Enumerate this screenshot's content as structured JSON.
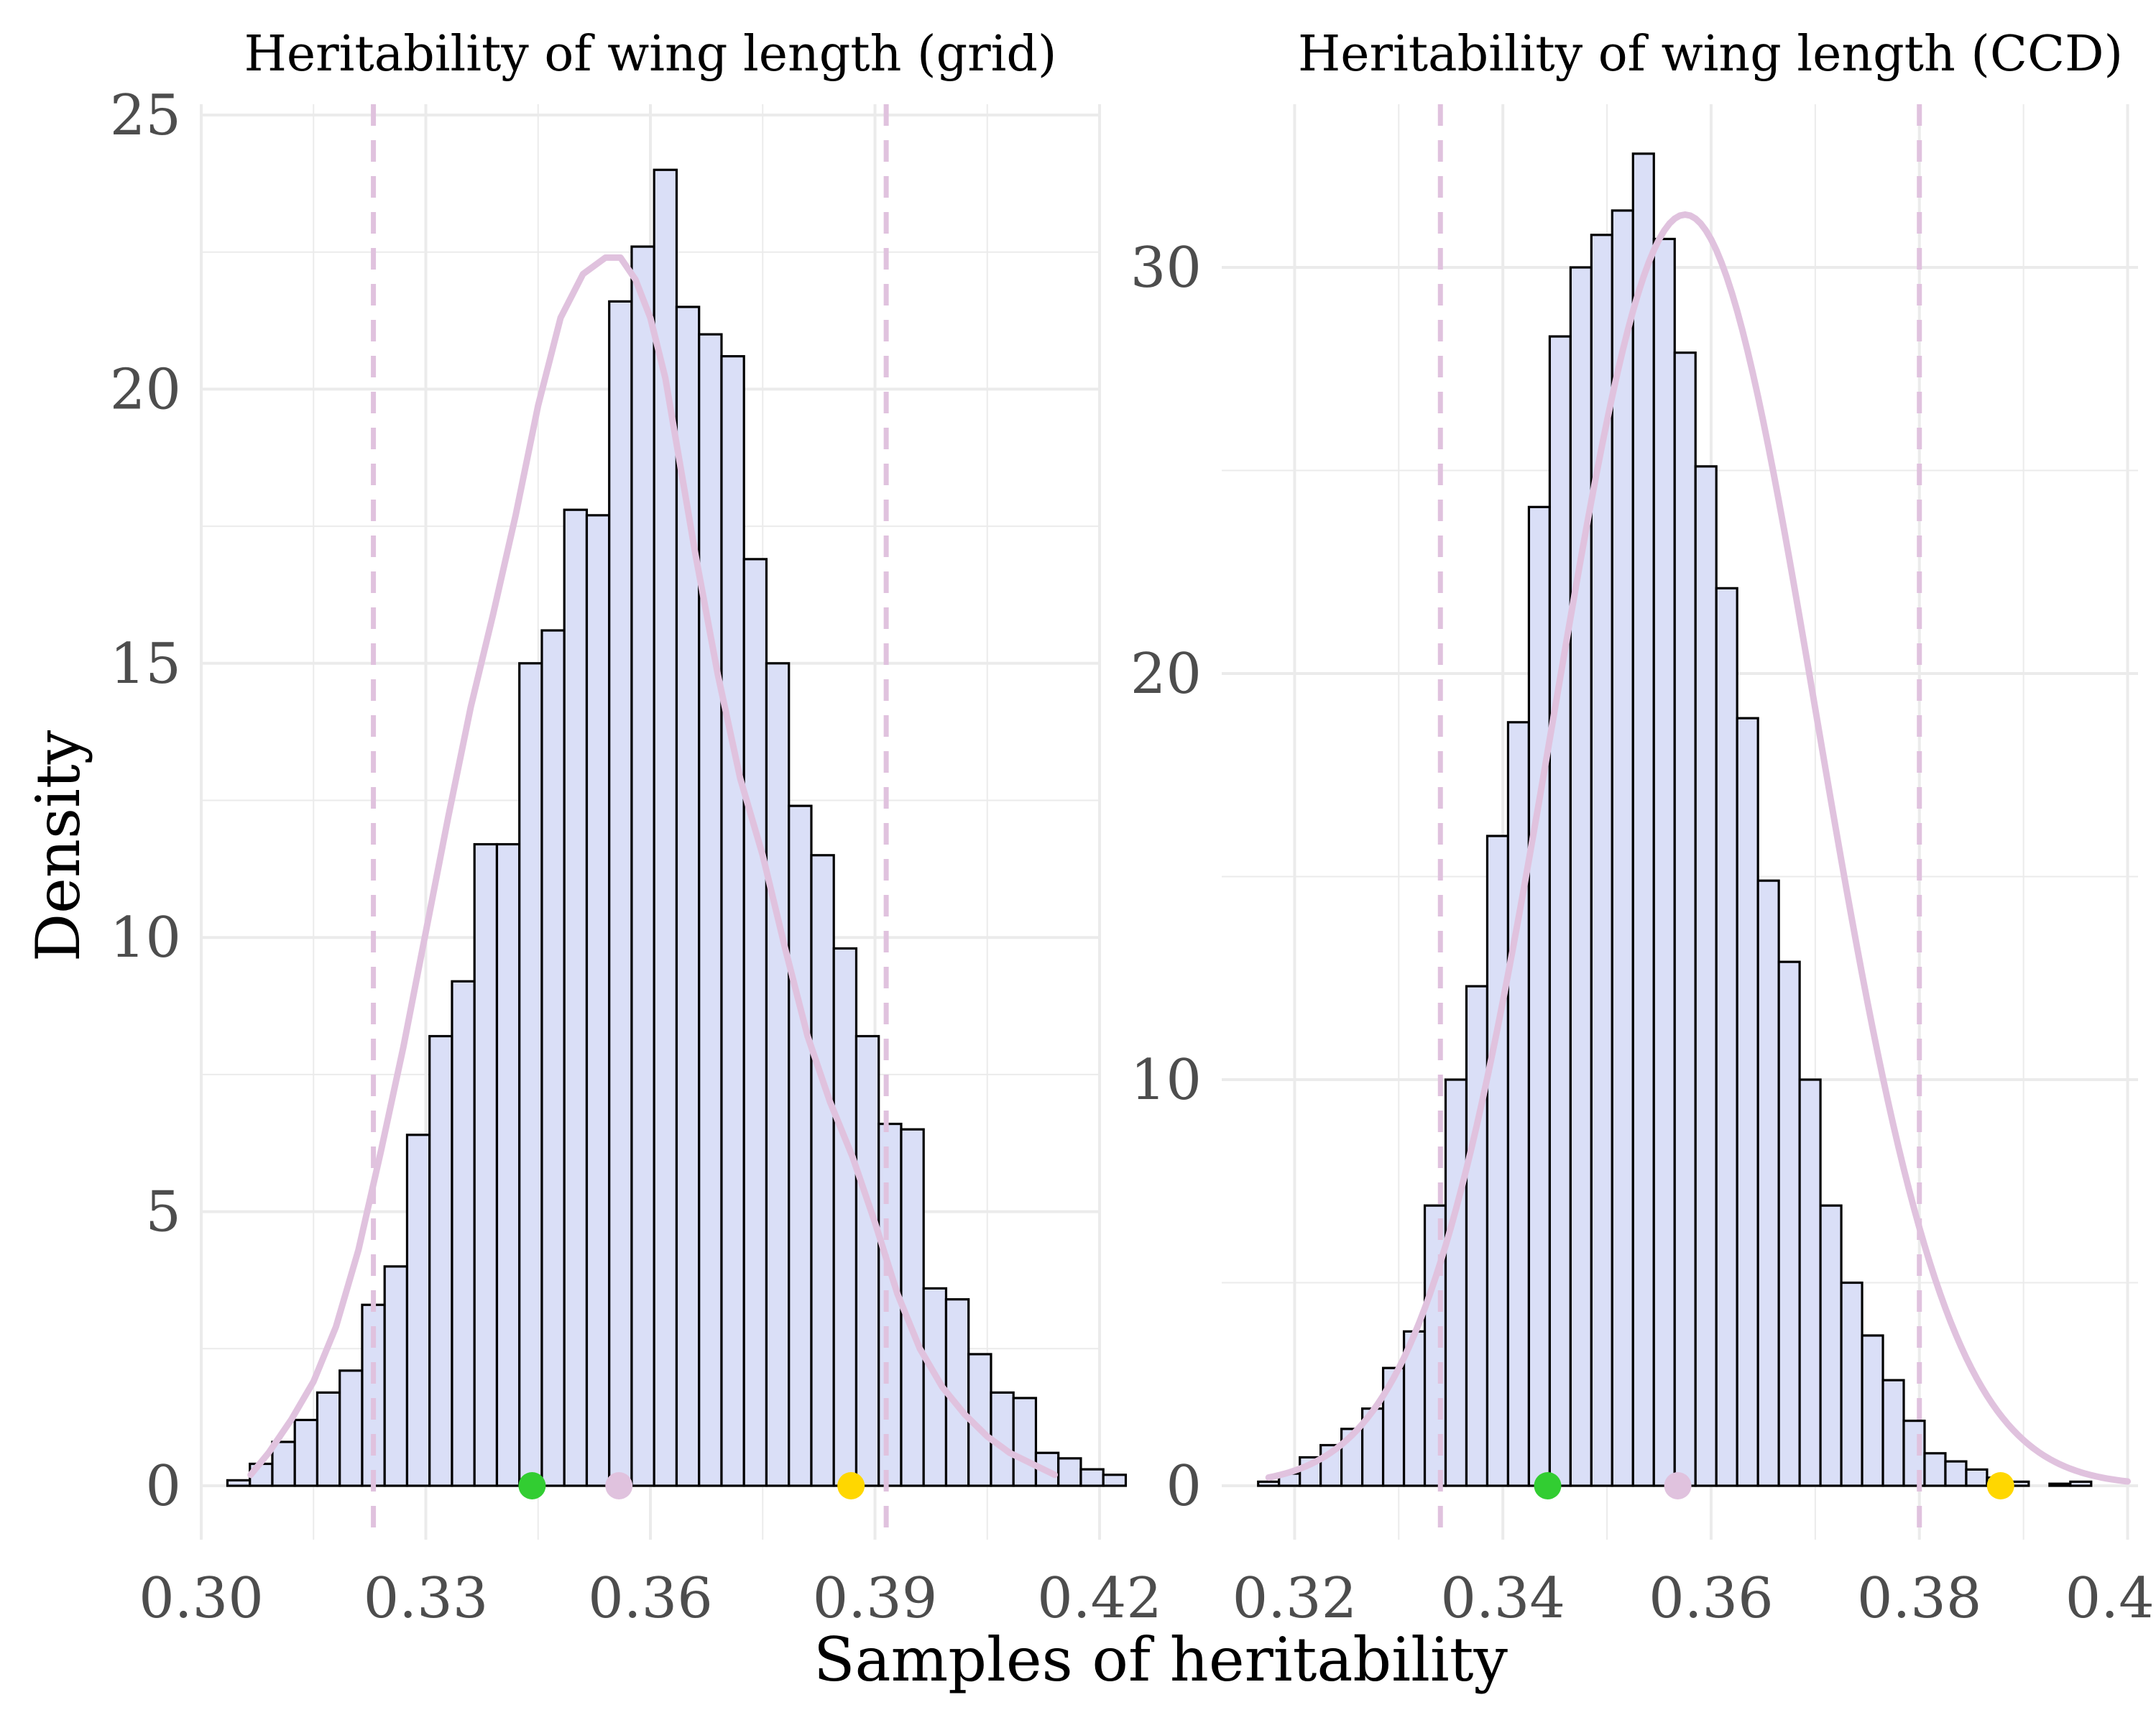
{
  "figure": {
    "xlabel": "Samples of heritability",
    "ylabel": "Density"
  },
  "chart_data": [
    {
      "type": "bar",
      "title": "Heritability of wing length (grid)",
      "xlim": [
        0.3,
        0.42
      ],
      "ylim": [
        0,
        25
      ],
      "xticks": [
        "0.30",
        "0.33",
        "0.36",
        "0.39",
        "0.42"
      ],
      "yticks": [
        "0",
        "5",
        "10",
        "15",
        "20",
        "25"
      ],
      "grid": true,
      "bin_start": 0.3035,
      "bin_width": 0.003,
      "values": [
        0.1,
        0.4,
        0.8,
        1.2,
        1.7,
        2.1,
        3.3,
        4.0,
        6.4,
        8.2,
        9.2,
        11.7,
        11.7,
        15.0,
        15.6,
        17.8,
        17.7,
        21.6,
        22.6,
        24.0,
        21.5,
        21.0,
        20.6,
        16.9,
        15.0,
        12.4,
        11.5,
        9.8,
        8.2,
        6.6,
        6.5,
        3.6,
        3.4,
        2.4,
        1.7,
        1.6,
        0.6,
        0.5,
        0.3,
        0.2
      ],
      "density_curve": {
        "x": [
          0.3066,
          0.309,
          0.312,
          0.315,
          0.318,
          0.321,
          0.324,
          0.327,
          0.33,
          0.333,
          0.336,
          0.339,
          0.342,
          0.345,
          0.348,
          0.351,
          0.354,
          0.356,
          0.358,
          0.36,
          0.362,
          0.364,
          0.366,
          0.369,
          0.372,
          0.375,
          0.378,
          0.381,
          0.384,
          0.387,
          0.39,
          0.393,
          0.396,
          0.399,
          0.402,
          0.405,
          0.408,
          0.411,
          0.414
        ],
        "y": [
          0.2,
          0.6,
          1.2,
          1.9,
          2.9,
          4.3,
          6.1,
          8.0,
          10.1,
          12.2,
          14.2,
          15.9,
          17.7,
          19.7,
          21.3,
          22.1,
          22.4,
          22.4,
          22.0,
          21.3,
          20.2,
          18.6,
          17.0,
          14.8,
          12.9,
          11.5,
          9.8,
          8.2,
          7.0,
          6.0,
          4.8,
          3.5,
          2.5,
          1.8,
          1.3,
          0.9,
          0.6,
          0.4,
          0.2
        ]
      },
      "interval_lines": [
        0.323,
        0.3915
      ],
      "points": [
        {
          "x": 0.3442,
          "color": "#32cd32"
        },
        {
          "x": 0.3558,
          "color": "#e0c2de"
        },
        {
          "x": 0.3868,
          "color": "#ffd700"
        }
      ]
    },
    {
      "type": "bar",
      "title": "Heritability of wing length (CCD)",
      "xlim": [
        0.313,
        0.401
      ],
      "ylim": [
        0,
        32
      ],
      "xticks": [
        "0.32",
        "0.34",
        "0.36",
        "0.38",
        "0.40"
      ],
      "yticks": [
        "0",
        "10",
        "20",
        "30"
      ],
      "grid": true,
      "bin_start": 0.3165,
      "bin_width": 0.002,
      "values": [
        0.1,
        0.3,
        0.7,
        1.0,
        1.4,
        1.9,
        2.9,
        3.8,
        6.9,
        10.0,
        12.3,
        16.0,
        18.8,
        24.1,
        28.3,
        30.0,
        30.8,
        31.4,
        32.8,
        30.7,
        27.9,
        25.1,
        22.1,
        18.9,
        14.9,
        12.9,
        10.0,
        6.9,
        5.0,
        3.7,
        2.6,
        1.6,
        0.8,
        0.6,
        0.4,
        0.2,
        0.1,
        0.0,
        0.05,
        0.1
      ]
    }
  ]
}
